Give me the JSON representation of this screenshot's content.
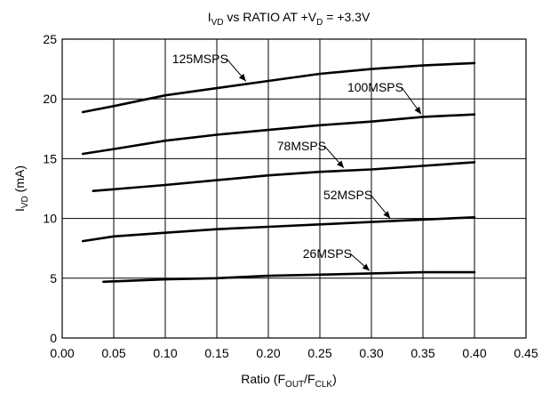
{
  "chart_data": {
    "type": "line",
    "title": {
      "main": "I",
      "sub": "VD",
      "rest": " vs RATIO AT +V",
      "sub2": "D",
      "end": " = +3.3V"
    },
    "xlabel": {
      "main": "Ratio (F",
      "sub": "OUT",
      "mid": "/F",
      "sub2": "CLK",
      "end": ")"
    },
    "ylabel": {
      "main": "I",
      "sub": "VD",
      "end": " (mA)"
    },
    "xlim": [
      0.0,
      0.45
    ],
    "ylim": [
      0,
      25
    ],
    "xticks": [
      "0.00",
      "0.05",
      "0.10",
      "0.15",
      "0.20",
      "0.25",
      "0.30",
      "0.35",
      "0.40",
      "0.45"
    ],
    "yticks": [
      "0",
      "5",
      "10",
      "15",
      "20",
      "25"
    ],
    "grid": true,
    "series": [
      {
        "name": "125MSPS",
        "x": [
          0.02,
          0.05,
          0.1,
          0.15,
          0.2,
          0.25,
          0.3,
          0.35,
          0.4
        ],
        "y": [
          18.9,
          19.4,
          20.3,
          20.9,
          21.5,
          22.1,
          22.5,
          22.8,
          23.0
        ],
        "label_at": 0.18,
        "label_y": 23.0
      },
      {
        "name": "100MSPS",
        "x": [
          0.02,
          0.05,
          0.1,
          0.15,
          0.2,
          0.25,
          0.3,
          0.35,
          0.4
        ],
        "y": [
          15.4,
          15.8,
          16.5,
          17.0,
          17.4,
          17.8,
          18.1,
          18.5,
          18.7
        ],
        "label_at": 0.35,
        "label_y": 20.6
      },
      {
        "name": "78MSPS",
        "x": [
          0.03,
          0.1,
          0.15,
          0.2,
          0.25,
          0.3,
          0.35,
          0.4
        ],
        "y": [
          12.3,
          12.8,
          13.2,
          13.6,
          13.9,
          14.1,
          14.4,
          14.7
        ],
        "label_at": 0.275,
        "label_y": 15.7
      },
      {
        "name": "52MSPS",
        "x": [
          0.02,
          0.05,
          0.1,
          0.15,
          0.2,
          0.25,
          0.3,
          0.35,
          0.4
        ],
        "y": [
          8.1,
          8.5,
          8.8,
          9.1,
          9.3,
          9.5,
          9.7,
          9.9,
          10.1
        ],
        "label_at": 0.32,
        "label_y": 11.6
      },
      {
        "name": "26MSPS",
        "x": [
          0.04,
          0.1,
          0.15,
          0.2,
          0.25,
          0.3,
          0.35,
          0.4
        ],
        "y": [
          4.7,
          4.9,
          5.0,
          5.2,
          5.3,
          5.4,
          5.5,
          5.5
        ],
        "label_at": 0.3,
        "label_y": 6.7
      }
    ]
  }
}
